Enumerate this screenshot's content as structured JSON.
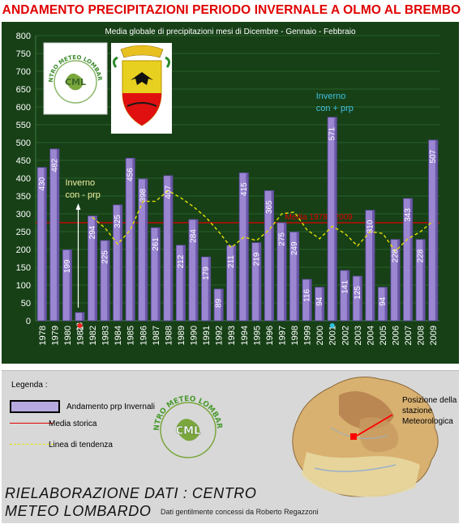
{
  "title": "ANDAMENTO PRECIPITAZIONI PERIODO INVERNALE A OLMO AL BREMBO",
  "chart_data": {
    "type": "bar",
    "subtitle": "Media globale di precipitazioni mesi di Dicembre - Gennaio - Febbraio",
    "categories": [
      "1978",
      "1979",
      "1980",
      "1981",
      "1982",
      "1983",
      "1984",
      "1985",
      "1986",
      "1987",
      "1988",
      "1989",
      "1990",
      "1991",
      "1992",
      "1993",
      "1994",
      "1995",
      "1996",
      "1997",
      "1998",
      "1999",
      "2000",
      "2001",
      "2002",
      "2003",
      "2004",
      "2005",
      "2006",
      "2007",
      "2008",
      "2009"
    ],
    "series": [
      {
        "name": "Andamento prp Invernali",
        "values": [
          430,
          482,
          199,
          23,
          294,
          225,
          325,
          456,
          398,
          261,
          407,
          212,
          284,
          179,
          89,
          211,
          415,
          219,
          365,
          275,
          249,
          116,
          94,
          571,
          141,
          125,
          310,
          94,
          228,
          343,
          228,
          507
        ]
      }
    ],
    "labels": [
      "430",
      "482",
      "199",
      "23",
      "294",
      "225",
      "325",
      "456",
      "398",
      "261",
      "407",
      "212",
      "284",
      "179",
      "89",
      "211",
      "415",
      "219",
      "365",
      "275",
      "249",
      "116",
      "94",
      "571",
      "141",
      "125",
      "310",
      "94",
      "228",
      "343",
      "228",
      "507"
    ],
    "trend_values": [
      null,
      null,
      null,
      null,
      290,
      260,
      215,
      255,
      335,
      335,
      365,
      345,
      320,
      290,
      250,
      205,
      235,
      225,
      255,
      300,
      305,
      255,
      230,
      265,
      245,
      210,
      250,
      245,
      195,
      230,
      250,
      280
    ],
    "mean": 275,
    "mean_label": "Media 1978 - 2009",
    "ylim": [
      0,
      800
    ],
    "yticks": [
      0,
      50,
      100,
      150,
      200,
      250,
      300,
      350,
      400,
      450,
      500,
      550,
      600,
      650,
      700,
      750,
      800
    ],
    "grid": true,
    "annotations": [
      {
        "text_lines": [
          "Inverno",
          "con - prp"
        ],
        "year": "1981"
      },
      {
        "text_lines": [
          "Inverno",
          "con + prp"
        ],
        "year": "2001"
      }
    ],
    "colors": {
      "bar": "#9b86d2",
      "bar_edge": "#5a4a9a",
      "mean": "#e00000",
      "trend": "#e6e000",
      "background": "#174017",
      "axis_text": "#ffffff",
      "annotation_low": "#f0f0a0",
      "annotation_high": "#40c0e0"
    }
  },
  "logos": {
    "cml_text": "CENTRO METEO LOMBARDO",
    "cml_short": "CML"
  },
  "legend": {
    "heading": "Legenda :",
    "bar_label": "Andamento prp Invernali",
    "mean_label": "Media storica",
    "trend_label": "Linea di tendenza"
  },
  "map": {
    "station_label": "Posizione della stazione Meteorologica"
  },
  "credits": {
    "line1": "RIELABORAZIONE DATI : CENTRO",
    "line2": "METEO LOMBARDO",
    "note": "Dati gentilmente concessi da Roberto Regazzoni"
  }
}
